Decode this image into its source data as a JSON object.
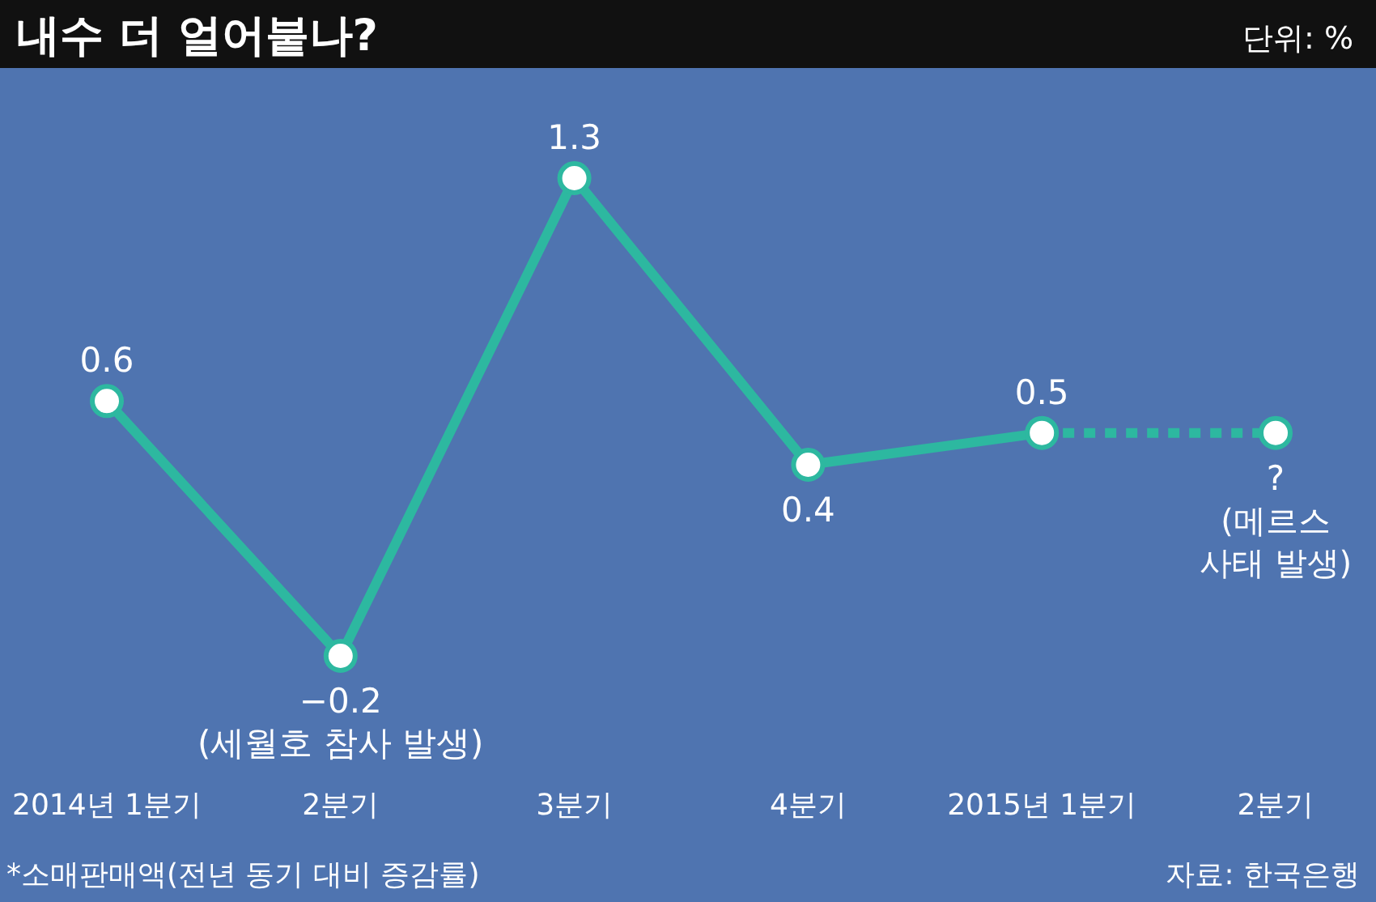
{
  "chart_data": {
    "type": "line",
    "title": "내수 더 얼어붙나?",
    "categories": [
      "2014년 1분기",
      "2분기",
      "3분기",
      "4분기",
      "2015년 1분기",
      "2분기"
    ],
    "series": [
      {
        "color": "#2db8a0",
        "values": [
          0.6,
          -0.2,
          1.3,
          0.4,
          0.5,
          null
        ],
        "value_labels": [
          "0.6",
          "−0.2",
          "1.3",
          "0.4",
          "0.5",
          null
        ],
        "line_style": "solid"
      },
      {
        "color": "#2db8a0",
        "values": [
          null,
          null,
          null,
          null,
          0.5,
          0.5
        ],
        "value_labels": [
          null,
          null,
          null,
          null,
          null,
          "?"
        ],
        "line_style": "dotted"
      }
    ],
    "marker": "circle",
    "annotations": [
      {
        "text": "(세월호 참사 발생)",
        "x": "2분기",
        "y": -0.2
      },
      "(메르스 사태 발생)",
      "단위: %",
      "*소매판매액(전년 동기 대비 증감률)",
      "자료: 한국은행"
    ]
  }
}
